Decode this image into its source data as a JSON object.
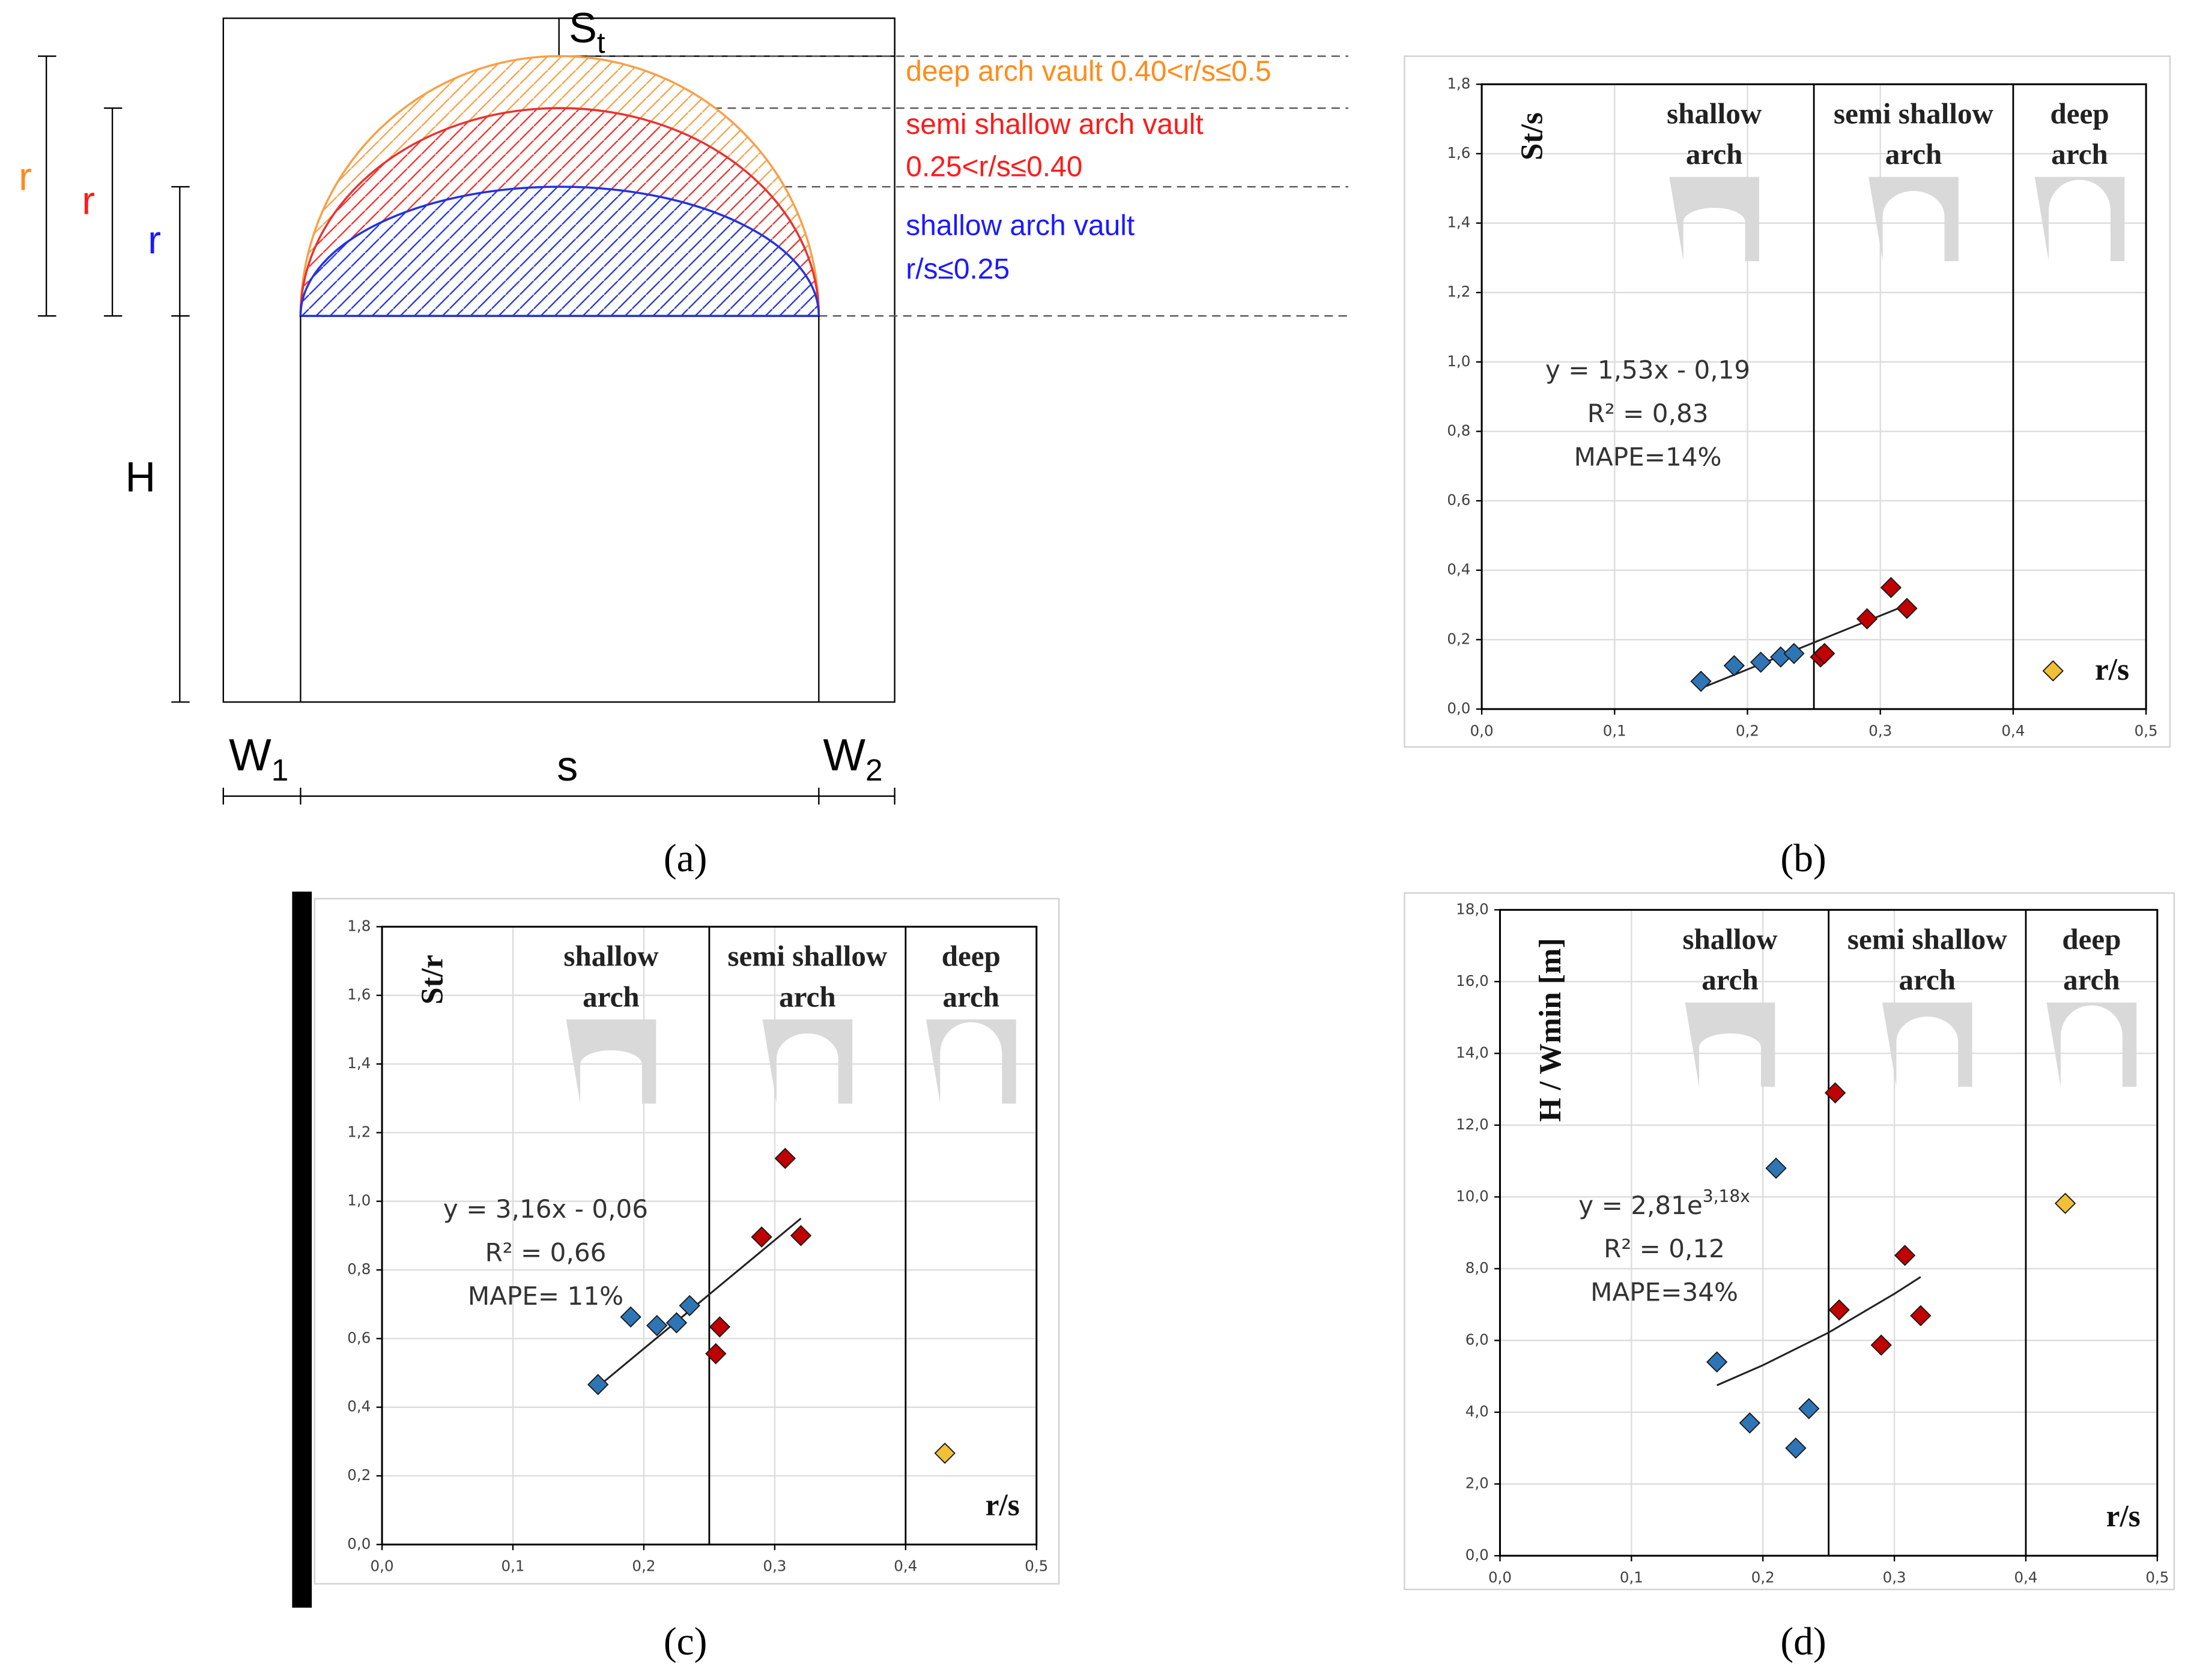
{
  "diagram": {
    "st": [
      "S",
      "t"
    ],
    "deep_label": "deep arch vault 0.40<r/s≤0.5",
    "semi_label": [
      "semi shallow arch vault",
      "0.25<r/s≤0.40"
    ],
    "shallow_label": [
      "shallow arch vault",
      "r/s≤0.25"
    ],
    "r_labels": [
      "r",
      "r",
      "r"
    ],
    "h_label": "H",
    "w1": [
      "W",
      "1"
    ],
    "s_label": "s",
    "w2": [
      "W",
      "2"
    ]
  },
  "captions": [
    "(a)",
    "(b)",
    "(c)",
    "(d)"
  ],
  "chart_data": [
    {
      "type": "scatter",
      "ylabel": "St/s",
      "xlabel": "r/s",
      "xlim": [
        0,
        0.5
      ],
      "xticks": [
        {
          "value": 0,
          "label": "0,0"
        },
        {
          "value": 0.1,
          "label": "0,1"
        },
        {
          "value": 0.2,
          "label": "0,2"
        },
        {
          "value": 0.3,
          "label": "0,3"
        },
        {
          "value": 0.4,
          "label": "0,4"
        },
        {
          "value": 0.5,
          "label": "0,5"
        }
      ],
      "ylim": [
        0,
        1.8
      ],
      "yticks": [
        {
          "value": 0,
          "label": "0,0"
        },
        {
          "value": 0.2,
          "label": "0,2"
        },
        {
          "value": 0.4,
          "label": "0,4"
        },
        {
          "value": 0.6,
          "label": "0,6"
        },
        {
          "value": 0.8,
          "label": "0,8"
        },
        {
          "value": 1.0,
          "label": "1,0"
        },
        {
          "value": 1.2,
          "label": "1,2"
        },
        {
          "value": 1.4,
          "label": "1,4"
        },
        {
          "value": 1.6,
          "label": "1,6"
        },
        {
          "value": 1.8,
          "label": "1,8"
        }
      ],
      "grid": true,
      "boundaries": [
        0.25,
        0.4
      ],
      "regions": [
        [
          "shallow",
          "arch"
        ],
        [
          "semi shallow",
          "arch"
        ],
        [
          "deep",
          "arch"
        ]
      ],
      "series": [
        {
          "color": "#2e75b6",
          "x": [
            0.165,
            0.19,
            0.21,
            0.225,
            0.235
          ],
          "values": [
            0.08,
            0.125,
            0.135,
            0.15,
            0.16
          ]
        },
        {
          "color": "#c00000",
          "x": [
            0.255,
            0.258,
            0.29,
            0.308,
            0.32
          ],
          "values": [
            0.15,
            0.16,
            0.26,
            0.35,
            0.29
          ]
        },
        {
          "color": "#f2c037",
          "x": [
            0.43
          ],
          "values": [
            0.11
          ]
        }
      ],
      "trendline": {
        "x": [
          0.165,
          0.32
        ],
        "values": [
          0.06,
          0.3
        ]
      },
      "equation": [
        "y = 1,53x - 0,19",
        "R² = 0,83",
        "MAPE=14%"
      ]
    },
    {
      "type": "scatter",
      "ylabel": "St/r",
      "xlabel": "r/s",
      "xlim": [
        0,
        0.5
      ],
      "xticks": [
        {
          "value": 0,
          "label": "0,0"
        },
        {
          "value": 0.1,
          "label": "0,1"
        },
        {
          "value": 0.2,
          "label": "0,2"
        },
        {
          "value": 0.3,
          "label": "0,3"
        },
        {
          "value": 0.4,
          "label": "0,4"
        },
        {
          "value": 0.5,
          "label": "0,5"
        }
      ],
      "ylim": [
        0,
        1.8
      ],
      "yticks": [
        {
          "value": 0,
          "label": "0,0"
        },
        {
          "value": 0.2,
          "label": "0,2"
        },
        {
          "value": 0.4,
          "label": "0,4"
        },
        {
          "value": 0.6,
          "label": "0,6"
        },
        {
          "value": 0.8,
          "label": "0,8"
        },
        {
          "value": 1.0,
          "label": "1,0"
        },
        {
          "value": 1.2,
          "label": "1,2"
        },
        {
          "value": 1.4,
          "label": "1,4"
        },
        {
          "value": 1.6,
          "label": "1,6"
        },
        {
          "value": 1.8,
          "label": "1,8"
        }
      ],
      "grid": true,
      "boundaries": [
        0.25,
        0.4
      ],
      "regions": [
        [
          "shallow",
          "arch"
        ],
        [
          "semi shallow",
          "arch"
        ],
        [
          "deep",
          "arch"
        ]
      ],
      "series": [
        {
          "color": "#2e75b6",
          "x": [
            0.165,
            0.19,
            0.21,
            0.225,
            0.235
          ],
          "values": [
            0.466,
            0.663,
            0.638,
            0.646,
            0.696
          ]
        },
        {
          "color": "#c00000",
          "x": [
            0.255,
            0.258,
            0.29,
            0.308,
            0.32
          ],
          "values": [
            0.556,
            0.634,
            0.896,
            1.125,
            0.9
          ]
        },
        {
          "color": "#f2c037",
          "x": [
            0.43
          ],
          "values": [
            0.266
          ]
        }
      ],
      "trendline": {
        "x": [
          0.165,
          0.32
        ],
        "values": [
          0.46,
          0.95
        ]
      },
      "equation": [
        "y = 3,16x - 0,06",
        "R² = 0,66",
        "MAPE= 11%"
      ]
    },
    {
      "type": "scatter",
      "ylabel": "H / Wmin [m]",
      "xlabel": "r/s",
      "xlim": [
        0,
        0.5
      ],
      "xticks": [
        {
          "value": 0,
          "label": "0,0"
        },
        {
          "value": 0.1,
          "label": "0,1"
        },
        {
          "value": 0.2,
          "label": "0,2"
        },
        {
          "value": 0.3,
          "label": "0,3"
        },
        {
          "value": 0.4,
          "label": "0,4"
        },
        {
          "value": 0.5,
          "label": "0,5"
        }
      ],
      "ylim": [
        0,
        18
      ],
      "yticks": [
        {
          "value": 0,
          "label": "0,0"
        },
        {
          "value": 2,
          "label": "2,0"
        },
        {
          "value": 4,
          "label": "4,0"
        },
        {
          "value": 6,
          "label": "6,0"
        },
        {
          "value": 8,
          "label": "8,0"
        },
        {
          "value": 10,
          "label": "10,0"
        },
        {
          "value": 12,
          "label": "12,0"
        },
        {
          "value": 14,
          "label": "14,0"
        },
        {
          "value": 16,
          "label": "16,0"
        },
        {
          "value": 18,
          "label": "18,0"
        }
      ],
      "grid": true,
      "boundaries": [
        0.25,
        0.4
      ],
      "regions": [
        [
          "shallow",
          "arch"
        ],
        [
          "semi shallow",
          "arch"
        ],
        [
          "deep",
          "arch"
        ]
      ],
      "series": [
        {
          "color": "#2e75b6",
          "x": [
            0.165,
            0.19,
            0.21,
            0.225,
            0.235
          ],
          "values": [
            5.4,
            3.7,
            10.8,
            3.0,
            4.1
          ]
        },
        {
          "color": "#c00000",
          "x": [
            0.255,
            0.258,
            0.29,
            0.308,
            0.32
          ],
          "values": [
            12.9,
            6.85,
            5.87,
            8.37,
            6.69
          ]
        },
        {
          "color": "#f2c037",
          "x": [
            0.43
          ],
          "values": [
            9.82
          ]
        }
      ],
      "trendline": {
        "x": [
          0.165,
          0.2,
          0.25,
          0.3,
          0.32
        ],
        "values": [
          4.75,
          5.31,
          6.22,
          7.3,
          7.77
        ]
      },
      "equation": [
        "y = 2,81e",
        "R² = 0,12",
        "MAPE=34%"
      ],
      "equation_exponent": "3,18x"
    }
  ]
}
